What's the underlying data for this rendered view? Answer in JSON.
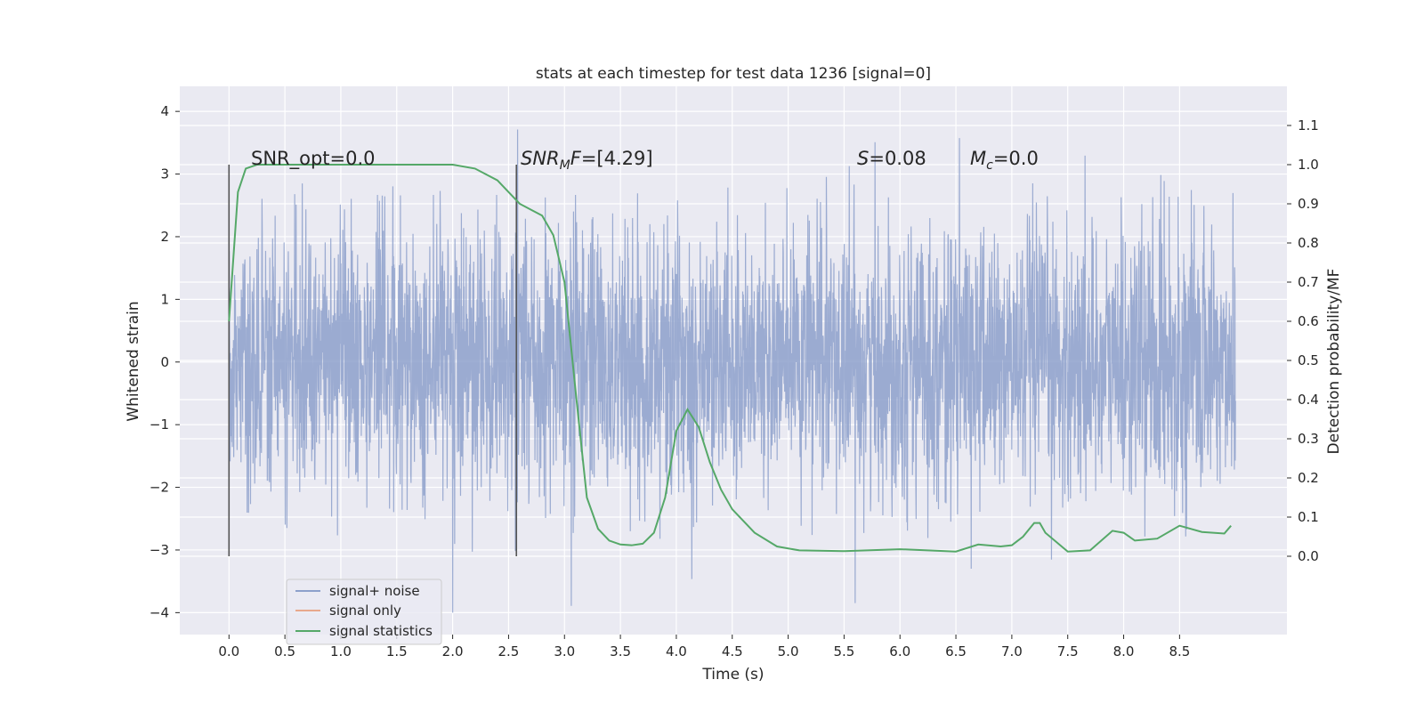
{
  "chart_data": {
    "type": "line",
    "title": "stats at each timestep for test data 1236 [signal=0]",
    "xlabel": "Time (s)",
    "ylabel_left": "Whitened strain",
    "ylabel_right": "Detection probability/MF",
    "xlim": [
      -0.44,
      9.46
    ],
    "ylim_left": [
      -4.35,
      4.4
    ],
    "ylim_right": [
      -0.2,
      1.2
    ],
    "x_ticks": [
      "0.0",
      "0.5",
      "1.0",
      "1.5",
      "2.0",
      "2.5",
      "3.0",
      "3.5",
      "4.0",
      "4.5",
      "5.0",
      "5.5",
      "6.0",
      "6.5",
      "7.0",
      "7.5",
      "8.0",
      "8.5"
    ],
    "y_left_ticks": [
      "4",
      "3",
      "2",
      "1",
      "0",
      "−1",
      "−2",
      "−3",
      "−4"
    ],
    "y_right_ticks": [
      "1.1",
      "1.0",
      "0.9",
      "0.8",
      "0.7",
      "0.6",
      "0.5",
      "0.4",
      "0.3",
      "0.2",
      "0.1",
      "0.0"
    ],
    "grid": true,
    "legend_position": "lower-left",
    "annotations": {
      "snr_opt": "SNR_opt=0.0",
      "snr_mf": "=[4.29]",
      "snr_mf_main": "SNR",
      "snr_mf_sub": "M",
      "snr_mf_tail": "F",
      "s_value": "=0.08",
      "s_symbol": "S",
      "mc_symbol": "M",
      "mc_sub": "c",
      "mc_value": "=0.0"
    },
    "vertical_markers": [
      0.0,
      2.57
    ],
    "series": [
      {
        "name": "signal+ noise",
        "color": "#8da0cb",
        "noise_range_x": [
          0.0,
          9.0
        ],
        "approx_envelope": [
          -4,
          4
        ]
      },
      {
        "name": "signal only",
        "color": "#e8a98c",
        "x": [],
        "y": []
      },
      {
        "name": "signal statistics",
        "color": "#55a868",
        "x": [
          0.0,
          0.08,
          0.15,
          0.25,
          0.5,
          1.0,
          1.5,
          2.0,
          2.2,
          2.4,
          2.5,
          2.6,
          2.7,
          2.8,
          2.9,
          3.0,
          3.1,
          3.2,
          3.3,
          3.4,
          3.5,
          3.6,
          3.7,
          3.8,
          3.9,
          4.0,
          4.1,
          4.2,
          4.3,
          4.4,
          4.5,
          4.7,
          4.9,
          5.1,
          5.5,
          6.0,
          6.5,
          6.7,
          6.9,
          7.0,
          7.1,
          7.2,
          7.25,
          7.3,
          7.5,
          7.7,
          7.9,
          8.0,
          8.1,
          8.3,
          8.5,
          8.7,
          8.9,
          8.96
        ],
        "y": [
          0.6,
          0.93,
          0.99,
          1.0,
          1.0,
          1.0,
          1.0,
          1.0,
          0.99,
          0.96,
          0.93,
          0.9,
          0.885,
          0.87,
          0.82,
          0.7,
          0.42,
          0.15,
          0.07,
          0.04,
          0.03,
          0.028,
          0.032,
          0.06,
          0.15,
          0.32,
          0.375,
          0.33,
          0.24,
          0.17,
          0.12,
          0.06,
          0.025,
          0.015,
          0.013,
          0.018,
          0.012,
          0.03,
          0.025,
          0.028,
          0.05,
          0.085,
          0.085,
          0.06,
          0.012,
          0.015,
          0.065,
          0.06,
          0.04,
          0.045,
          0.078,
          0.062,
          0.058,
          0.078
        ]
      }
    ]
  }
}
